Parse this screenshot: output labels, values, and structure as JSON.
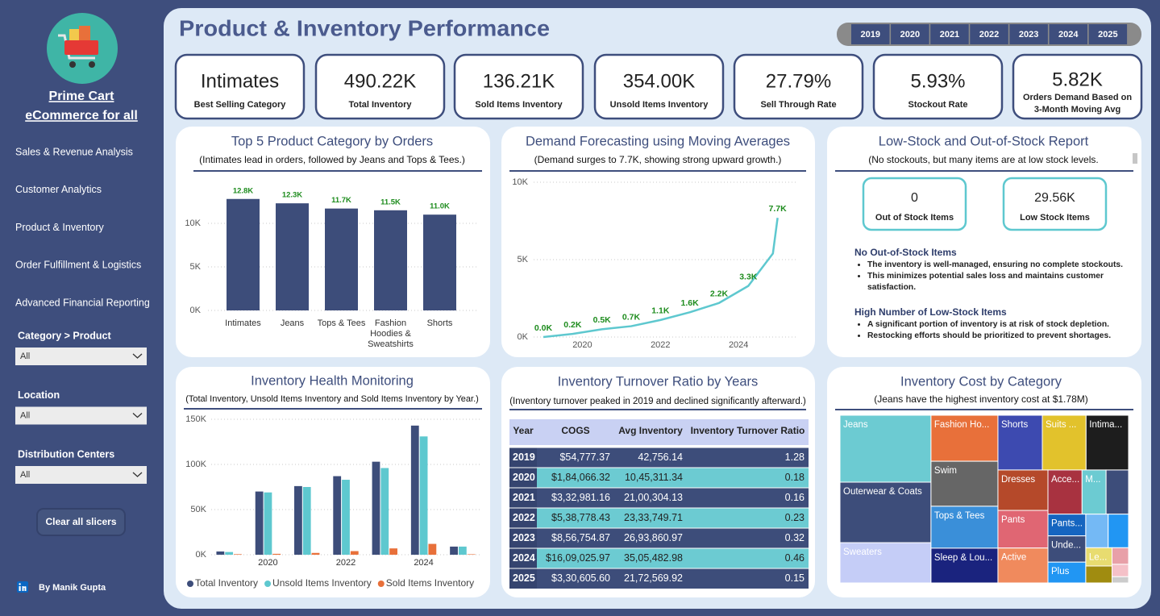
{
  "sidebar": {
    "brand": [
      "Prime Cart",
      "eCommerce for all"
    ],
    "nav": [
      "Sales & Revenue Analysis",
      "Customer Analytics",
      "Product & Inventory",
      "Order Fulfillment & Logistics",
      "Advanced Financial Reporting"
    ],
    "filters": [
      {
        "label": "Category > Product",
        "value": "All"
      },
      {
        "label": "Location",
        "value": "All"
      },
      {
        "label": "Distribution Centers",
        "value": "All"
      }
    ],
    "clear_button": "Clear all slicers",
    "author": "By Manik Gupta"
  },
  "header": {
    "title": "Product & Inventory Performance",
    "years": [
      "2019",
      "2020",
      "2021",
      "2022",
      "2023",
      "2024",
      "2025"
    ]
  },
  "kpis": [
    {
      "value": "Intimates",
      "label": [
        "Best Selling Category"
      ]
    },
    {
      "value": "490.22K",
      "label": [
        "Total Inventory"
      ]
    },
    {
      "value": "136.21K",
      "label": [
        "Sold Items Inventory"
      ]
    },
    {
      "value": "354.00K",
      "label": [
        "Unsold Items Inventory"
      ]
    },
    {
      "value": "27.79%",
      "label": [
        "Sell Through Rate"
      ]
    },
    {
      "value": "5.93%",
      "label": [
        "Stockout Rate"
      ]
    },
    {
      "value": "5.82K",
      "label": [
        "Orders Demand Based on",
        "3-Month Moving Avg"
      ]
    }
  ],
  "low_stock": {
    "title": "Low-Stock and Out-of-Stock Report",
    "subtitle": "(No stockouts, but many items are at low stock levels.",
    "cards": [
      {
        "value": "0",
        "label": "Out of Stock Items"
      },
      {
        "value": "29.56K",
        "label": "Low Stock Items"
      }
    ],
    "notes": [
      {
        "heading": "No Out-of-Stock Items",
        "bullets": [
          "The inventory is well-managed, ensuring no complete stockouts.",
          "This minimizes potential sales loss and maintains customer satisfaction."
        ]
      },
      {
        "heading": "High Number of Low-Stock Items",
        "bullets": [
          "A significant portion of inventory is at risk of stock depletion.",
          "Restocking efforts should be prioritized to prevent shortages."
        ]
      }
    ]
  },
  "turnover_table": {
    "title": "Inventory Turnover Ratio by Years",
    "subtitle": "(Inventory turnover peaked in 2019 and declined significantly afterward.)",
    "columns": [
      "Year",
      "COGS",
      "Avg Inventory",
      "Inventory Turnover Ratio"
    ],
    "rows": [
      [
        "2019",
        "$54,777.37",
        "42,756.14",
        "1.28"
      ],
      [
        "2020",
        "$1,84,066.32",
        "10,45,311.34",
        "0.18"
      ],
      [
        "2021",
        "$3,32,981.16",
        "21,00,304.13",
        "0.16"
      ],
      [
        "2022",
        "$5,38,778.43",
        "23,33,749.71",
        "0.23"
      ],
      [
        "2023",
        "$8,56,754.87",
        "26,93,860.97",
        "0.32"
      ],
      [
        "2024",
        "$16,09,025.97",
        "35,05,482.98",
        "0.46"
      ],
      [
        "2025",
        "$3,30,605.60",
        "21,72,569.92",
        "0.15"
      ]
    ]
  },
  "chart_data": [
    {
      "type": "bar",
      "title": "Top 5 Product Category by Orders",
      "subtitle": "(Intimates lead in orders, followed by Jeans and Tops & Tees.)",
      "categories": [
        "Intimates",
        "Jeans",
        "Tops & Tees",
        "Fashion Hoodies & Sweatshirts",
        "Shorts"
      ],
      "values": [
        12800,
        12300,
        11700,
        11500,
        11000
      ],
      "value_labels": [
        "12.8K",
        "12.3K",
        "11.7K",
        "11.5K",
        "11.0K"
      ],
      "color": "#3d4d7a",
      "label_color": "#1e8c1e",
      "ylim": [
        0,
        15000
      ],
      "yticks": [
        {
          "value": 0,
          "label": "0K"
        },
        {
          "value": 5000,
          "label": "5K"
        },
        {
          "value": 10000,
          "label": "10K"
        }
      ],
      "grid": true
    },
    {
      "type": "line",
      "title": "Demand Forecasting using Moving Averages",
      "subtitle": "(Demand surges to 7.7K, showing strong upward growth.)",
      "x": [
        2019,
        2019.75,
        2020.5,
        2021.25,
        2022,
        2022.75,
        2023.5,
        2024.25,
        2024.88,
        2025
      ],
      "values": [
        0,
        200,
        500,
        700,
        1100,
        1600,
        2200,
        3300,
        5400,
        7700
      ],
      "value_labels": [
        "0.0K",
        "0.2K",
        "0.5K",
        "0.7K",
        "1.1K",
        "1.6K",
        "2.2K",
        "3.3K",
        null,
        "7.7K"
      ],
      "color": "#5ec8cf",
      "label_color": "#1e8c1e",
      "xlim": [
        2019,
        2025.4
      ],
      "xticks": [
        2020,
        2022,
        2024
      ],
      "ylim": [
        0,
        10000
      ],
      "yticks": [
        {
          "value": 0,
          "label": "0K"
        },
        {
          "value": 5000,
          "label": "5K"
        },
        {
          "value": 10000,
          "label": "10K"
        }
      ],
      "grid": true
    },
    {
      "type": "bar",
      "title": "Inventory Health Monitoring",
      "subtitle": "(Total Inventory, Unsold Items Inventory and Sold Items Inventory by Year.)",
      "categories": [
        null,
        "2020",
        null,
        "2022",
        null,
        "2024",
        null
      ],
      "series": [
        {
          "name": "Total Inventory",
          "color": "#3d4d7a",
          "values": [
            3600,
            70000,
            76000,
            87000,
            103000,
            143000,
            9000
          ]
        },
        {
          "name": "Unsold Items Inventory",
          "color": "#5ec8cf",
          "values": [
            3000,
            69000,
            75000,
            83000,
            96000,
            131000,
            9000
          ]
        },
        {
          "name": "Sold Items Inventory",
          "color": "#e8703a",
          "values": [
            600,
            1000,
            2000,
            4000,
            7000,
            12000,
            500
          ]
        }
      ],
      "ylim": [
        0,
        155000
      ],
      "yticks": [
        {
          "value": 0,
          "label": "0K"
        },
        {
          "value": 50000,
          "label": "50K"
        },
        {
          "value": 100000,
          "label": "100K"
        },
        {
          "value": 150000,
          "label": "150K"
        }
      ],
      "grid": true,
      "legend": "bottom"
    },
    {
      "type": "treemap",
      "title": "Inventory Cost by Category",
      "subtitle": "(Jeans have the highest inventory cost at $1.78M)",
      "categories": [
        "Jeans",
        "Fashion Ho...",
        "Shorts",
        "Suits ...",
        "Intima...",
        "Outerwear & Coats",
        "Swim",
        "Dresses",
        "Acce...",
        "M...",
        "Tops & Tees",
        "Pants",
        "Pants...",
        "Sleep & Lou...",
        "Active",
        "Unde...",
        "Le...",
        "Plus",
        "Sweaters",
        null,
        null,
        null,
        null,
        null,
        null,
        null
      ],
      "values": [
        1.78,
        0.9,
        0.71,
        0.7,
        0.68,
        1.61,
        0.88,
        0.59,
        0.44,
        0.31,
        0.82,
        0.55,
        0.24,
        0.68,
        0.51,
        0.29,
        0.14,
        0.23,
        1.07,
        0.29,
        0.22,
        0.2,
        0.08,
        0.13,
        0.06,
        0.03
      ],
      "colors": [
        "#6ccbd2",
        "#e8703a",
        "#3d4ab0",
        "#e2c22c",
        "#1d1d1d",
        "#3d4d7a",
        "#666666",
        "#b5492a",
        "#a83240",
        "#6ccbd2",
        "#3a8fd9",
        "#e06673",
        "#1565c0",
        "#1a237e",
        "#f08a5d",
        "#3d4d7a",
        "#e8dc70",
        "#2196f3",
        "#c5cdf7",
        "#3d4d7a",
        "#74b9f5",
        "#2196f3",
        "#e8a0a8",
        "#a08c10",
        "#f5c1c8",
        "#cccccc"
      ]
    }
  ]
}
